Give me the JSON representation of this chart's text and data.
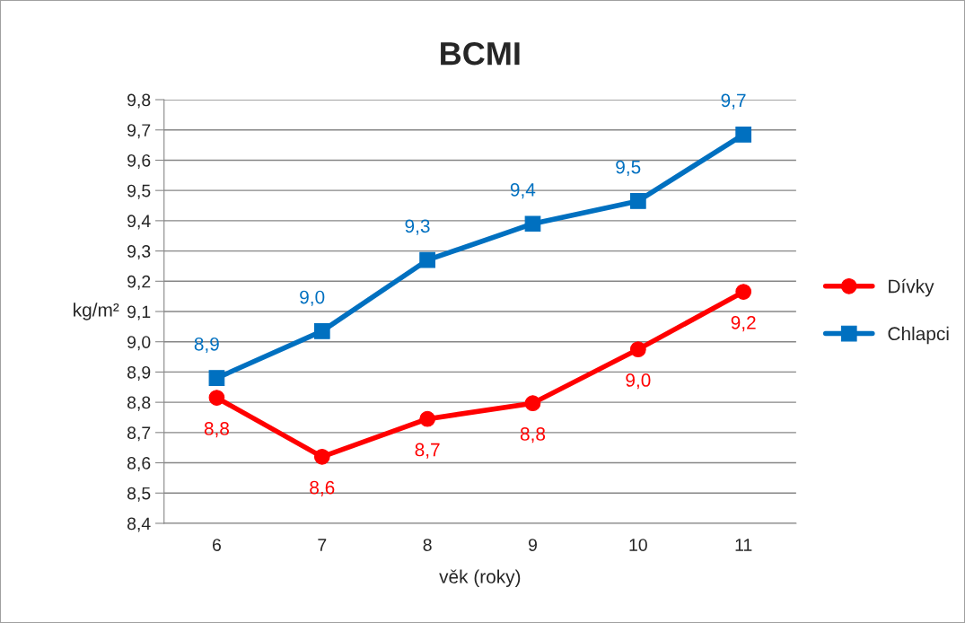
{
  "chart_data": {
    "type": "line",
    "title": "BCMI",
    "xlabel": "věk (roky)",
    "ylabel": "kg/m²",
    "categories": [
      "6",
      "7",
      "8",
      "9",
      "10",
      "11"
    ],
    "series": [
      {
        "name": "Dívky",
        "color": "#ff0000",
        "marker": "circle",
        "values": [
          8.815,
          8.62,
          8.745,
          8.797,
          8.975,
          9.165
        ],
        "value_labels": [
          "8,8",
          "8,6",
          "8,7",
          "8,8",
          "9,0",
          "9,2"
        ]
      },
      {
        "name": "Chlapci",
        "color": "#0070c0",
        "marker": "square",
        "values": [
          8.88,
          9.035,
          9.27,
          9.39,
          9.465,
          9.685
        ],
        "value_labels": [
          "8,9",
          "9,0",
          "9,3",
          "9,4",
          "9,5",
          "9,7"
        ]
      }
    ],
    "ylim": [
      8.4,
      9.8
    ],
    "yticks": [
      {
        "value": 8.4,
        "label": "8,4"
      },
      {
        "value": 8.5,
        "label": "8,5"
      },
      {
        "value": 8.6,
        "label": "8,6"
      },
      {
        "value": 8.7,
        "label": "8,7"
      },
      {
        "value": 8.8,
        "label": "8,8"
      },
      {
        "value": 8.9,
        "label": "8,9"
      },
      {
        "value": 9.0,
        "label": "9,0"
      },
      {
        "value": 9.1,
        "label": "9,1"
      },
      {
        "value": 9.2,
        "label": "9,2"
      },
      {
        "value": 9.3,
        "label": "9,3"
      },
      {
        "value": 9.4,
        "label": "9,4"
      },
      {
        "value": 9.5,
        "label": "9,5"
      },
      {
        "value": 9.6,
        "label": "9,6"
      },
      {
        "value": 9.7,
        "label": "9,7"
      },
      {
        "value": 9.8,
        "label": "9,8"
      }
    ],
    "grid": "y",
    "legend": "right",
    "line_style": "solid"
  }
}
